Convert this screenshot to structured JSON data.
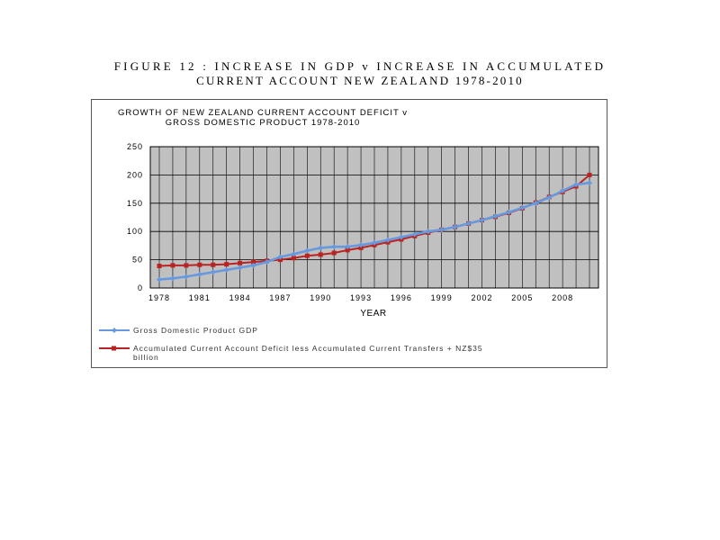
{
  "figure": {
    "title_line1": "FIGURE 12  : INCREASE  IN  GDP  v  INCREASE  IN  ACCUMULATED",
    "title_line2": "CURRENT ACCOUNT NEW ZEALAND 1978-2010"
  },
  "chart_data": {
    "type": "line",
    "title": "GROWTH OF NEW ZEALAND CURRENT ACCOUNT DEFICIT  v",
    "subtitle": "GROSS DOMESTIC PRODUCT  1978-2010",
    "xlabel": "YEAR",
    "ylabel": "",
    "xlim": [
      1978,
      2010
    ],
    "ylim": [
      0,
      250
    ],
    "grid": true,
    "legend_placement": "bottom",
    "x_tick_labels": [
      "1978",
      "1981",
      "1984",
      "1987",
      "1990",
      "1993",
      "1996",
      "1999",
      "2002",
      "2005",
      "2008"
    ],
    "y_tick_labels": [
      "0",
      "50",
      "100",
      "150",
      "200",
      "250"
    ],
    "plot_background": "#c0c0c0",
    "x": [
      1978,
      1979,
      1980,
      1981,
      1982,
      1983,
      1984,
      1985,
      1986,
      1987,
      1988,
      1989,
      1990,
      1991,
      1992,
      1993,
      1994,
      1995,
      1996,
      1997,
      1998,
      1999,
      2000,
      2001,
      2002,
      2003,
      2004,
      2005,
      2006,
      2007,
      2008,
      2009,
      2010
    ],
    "series": [
      {
        "name": "Gross Domestic Product GDP",
        "color": "#6699dd",
        "marker": "diamond",
        "values": [
          15,
          17,
          20,
          24,
          28,
          32,
          36,
          40,
          46,
          55,
          60,
          66,
          71,
          73,
          73,
          76,
          80,
          85,
          90,
          95,
          100,
          103,
          108,
          114,
          120,
          127,
          134,
          142,
          150,
          160,
          172,
          183,
          186
        ]
      },
      {
        "name": "Accumulated Current Account Deficit less Accumulated Current Transfers + NZ$35 billion",
        "color": "#bb2222",
        "marker": "square",
        "values": [
          39,
          40,
          40,
          41,
          41,
          42,
          44,
          46,
          48,
          50,
          53,
          57,
          59,
          62,
          67,
          71,
          76,
          81,
          86,
          92,
          98,
          103,
          108,
          114,
          120,
          126,
          133,
          141,
          151,
          161,
          170,
          180,
          200
        ]
      }
    ]
  }
}
